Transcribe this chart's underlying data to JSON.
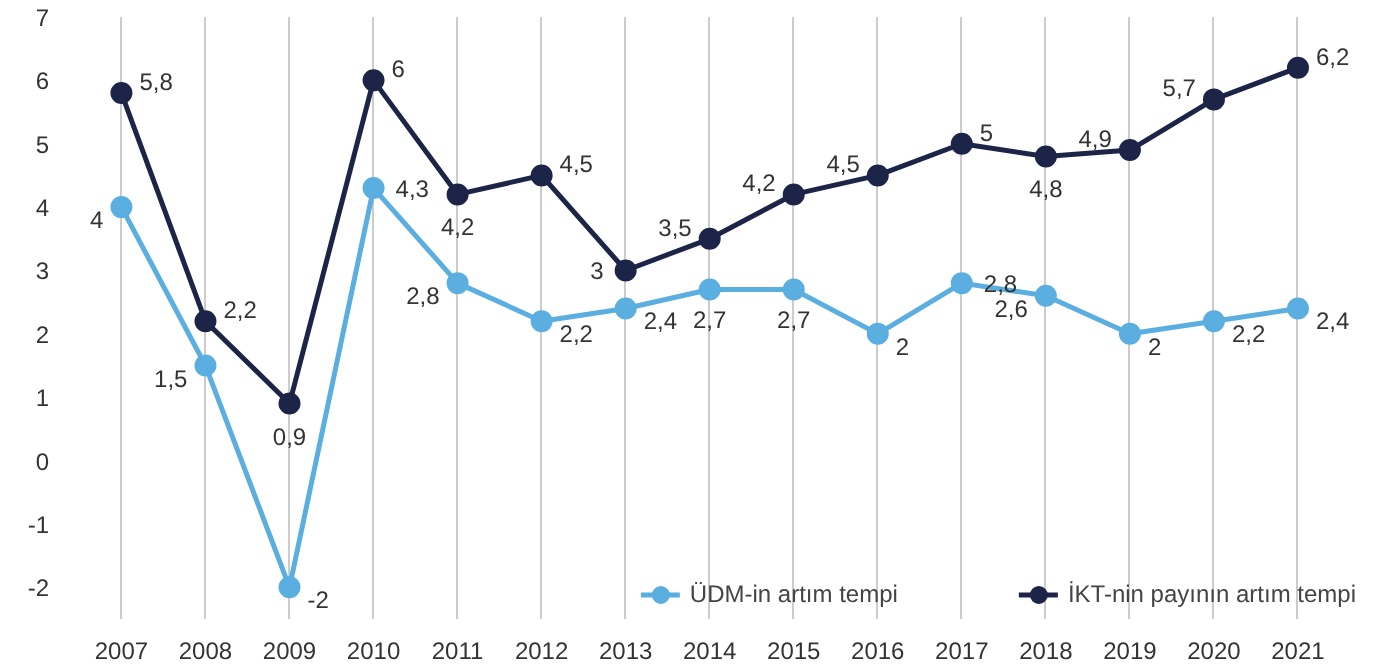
{
  "chart_data": {
    "type": "line",
    "categories": [
      "2007",
      "2008",
      "2009",
      "2010",
      "2011",
      "2012",
      "2013",
      "2014",
      "2015",
      "2016",
      "2017",
      "2018",
      "2019",
      "2020",
      "2021"
    ],
    "series": [
      {
        "name": "ÜDM-in artım tempi",
        "color": "#5aaee0",
        "values": [
          4,
          1.5,
          -2,
          4.3,
          2.8,
          2.2,
          2.4,
          2.7,
          2.7,
          2,
          2.8,
          2.6,
          2,
          2.2,
          2.4
        ],
        "value_labels": [
          "4",
          "1,5",
          "-2",
          "4,3",
          "2,8",
          "2,2",
          "2,4",
          "2,7",
          "2,7",
          "2",
          "2,8",
          "2,6",
          "2",
          "2,2",
          "2,4"
        ]
      },
      {
        "name": "İKT-nin payının artım tempi",
        "color": "#1c2548",
        "values": [
          5.8,
          2.2,
          0.9,
          6,
          4.2,
          4.5,
          3,
          3.5,
          4.2,
          4.5,
          5,
          4.8,
          4.9,
          5.7,
          6.2
        ],
        "value_labels": [
          "5,8",
          "2,2",
          "0,9",
          "6",
          "4,2",
          "4,5",
          "3",
          "3,5",
          "4,2",
          "4,5",
          "5",
          "4,8",
          "4,9",
          "5,7",
          "6,2"
        ]
      }
    ],
    "ylim": [
      -2.5,
      7
    ],
    "yticks": [
      -2,
      -1,
      0,
      1,
      2,
      3,
      4,
      5,
      6,
      7
    ],
    "grid": "x",
    "legend": "bottom",
    "marker": "circle",
    "line_style": "solid"
  }
}
